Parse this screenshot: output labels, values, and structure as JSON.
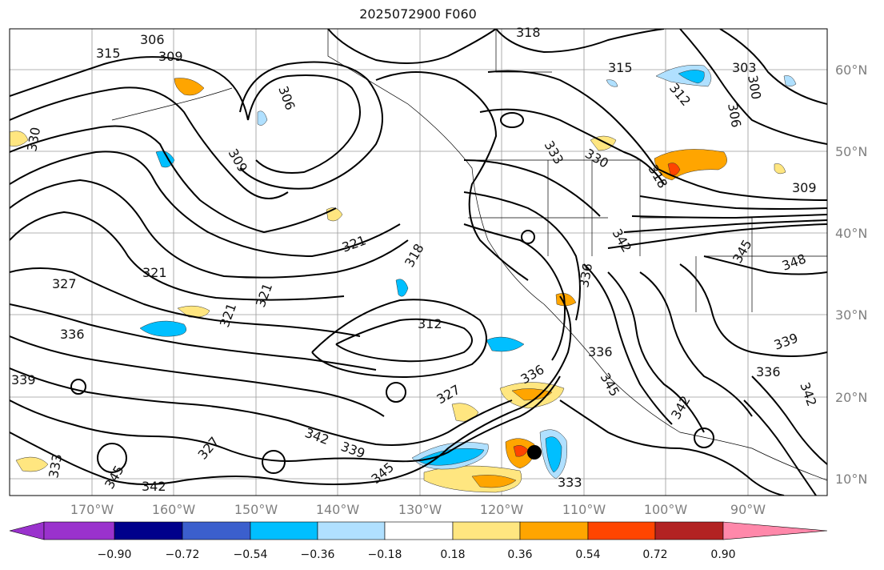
{
  "title": "2025072900 F060",
  "lat_labels": [
    "60°N",
    "50°N",
    "40°N",
    "30°N",
    "20°N",
    "10°N"
  ],
  "lon_labels": [
    "170°W",
    "160°W",
    "150°W",
    "140°W",
    "130°W",
    "120°W",
    "110°W",
    "100°W",
    "90°W"
  ],
  "colorbar": {
    "ticks": [
      "−0.90",
      "−0.72",
      "−0.54",
      "−0.36",
      "−0.18",
      "0.18",
      "0.36",
      "0.54",
      "0.72",
      "0.90"
    ],
    "colors": [
      "#9a32cd",
      "#00008b",
      "#3b5fcd",
      "#00bfff",
      "#b0e0ff",
      "#ffffff",
      "#ffe680",
      "#ffa500",
      "#ff4500",
      "#b22222",
      "#ff88aa"
    ]
  },
  "contour_labels": [
    {
      "text": "306"
    },
    {
      "text": "315"
    },
    {
      "text": "309"
    },
    {
      "text": "318"
    },
    {
      "text": "315"
    },
    {
      "text": "303"
    },
    {
      "text": "306"
    },
    {
      "text": "312"
    },
    {
      "text": "300"
    },
    {
      "text": "306"
    },
    {
      "text": "330"
    },
    {
      "text": "309"
    },
    {
      "text": "333"
    },
    {
      "text": "330"
    },
    {
      "text": "318"
    },
    {
      "text": "309"
    },
    {
      "text": "321"
    },
    {
      "text": "318"
    },
    {
      "text": "321"
    },
    {
      "text": "327"
    },
    {
      "text": "321"
    },
    {
      "text": "321"
    },
    {
      "text": "312"
    },
    {
      "text": "336"
    },
    {
      "text": "342"
    },
    {
      "text": "345"
    },
    {
      "text": "348"
    },
    {
      "text": "339"
    },
    {
      "text": "336"
    },
    {
      "text": "342"
    },
    {
      "text": "339"
    },
    {
      "text": "336"
    },
    {
      "text": "327"
    },
    {
      "text": "342"
    },
    {
      "text": "339"
    },
    {
      "text": "333"
    },
    {
      "text": "342"
    },
    {
      "text": "345"
    },
    {
      "text": "327"
    },
    {
      "text": "345"
    },
    {
      "text": "333"
    },
    {
      "text": "342"
    },
    {
      "text": "345"
    },
    {
      "text": "336"
    },
    {
      "text": "336"
    }
  ],
  "colors": {
    "grid": "#9a9a9a",
    "contour": "#000000",
    "blue_light": "#b0e0ff",
    "blue": "#00bfff",
    "yellow": "#ffe680",
    "orange": "#ffa500",
    "red": "#ff4500"
  }
}
